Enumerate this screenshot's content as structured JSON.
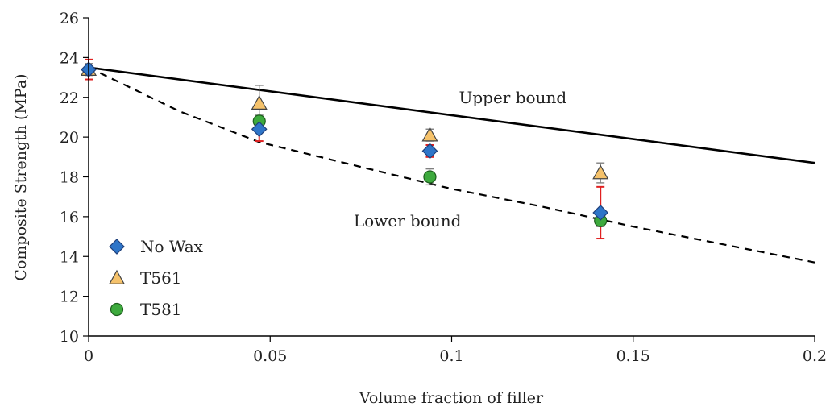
{
  "chart_data": {
    "type": "scatter",
    "xlabel": "Volume fraction of filler",
    "ylabel": "Composite Strength (MPa)",
    "xlim": [
      0,
      0.2
    ],
    "ylim": [
      10,
      26
    ],
    "x_ticks": [
      0,
      0.05,
      0.1,
      0.15,
      0.2
    ],
    "x_tick_labels": [
      "0",
      "0.05",
      "0.1",
      "0.15",
      "0.2"
    ],
    "y_ticks": [
      10,
      12,
      14,
      16,
      18,
      20,
      22,
      24,
      26
    ],
    "y_tick_labels": [
      "10",
      "12",
      "14",
      "16",
      "18",
      "20",
      "22",
      "24",
      "26"
    ],
    "grid": false,
    "legend_position": "bottom-left",
    "series": [
      {
        "name": "No Wax",
        "marker": "diamond",
        "color": "#2e75c8",
        "error_color": "#e02020",
        "points": [
          {
            "x": 0,
            "y": 23.4,
            "err": 0.5
          },
          {
            "x": 0.047,
            "y": 20.4,
            "err": 0.6
          },
          {
            "x": 0.094,
            "y": 19.3,
            "err": 0.3
          },
          {
            "x": 0.141,
            "y": 16.2,
            "err": 1.3
          }
        ]
      },
      {
        "name": "T561",
        "marker": "triangle",
        "color": "#f5c26b",
        "error_color": "#808080",
        "points": [
          {
            "x": 0,
            "y": 23.4,
            "err": 0.3
          },
          {
            "x": 0.047,
            "y": 21.7,
            "err": 0.9
          },
          {
            "x": 0.094,
            "y": 20.1,
            "err": 0.3
          },
          {
            "x": 0.141,
            "y": 18.2,
            "err": 0.5
          }
        ]
      },
      {
        "name": "T581",
        "marker": "circle",
        "color": "#3daa3d",
        "error_color": "#808080",
        "points": [
          {
            "x": 0.047,
            "y": 20.8,
            "err": 0.3
          },
          {
            "x": 0.094,
            "y": 18.0,
            "err": 0.4
          },
          {
            "x": 0.141,
            "y": 15.8,
            "err": 0.3
          }
        ]
      }
    ],
    "bounds": [
      {
        "label": "Upper bound",
        "style": "solid",
        "points": [
          {
            "x": 0,
            "y": 23.5
          },
          {
            "x": 0.2,
            "y": 18.7
          }
        ],
        "label_at": {
          "x": 0.102,
          "y": 22.0
        }
      },
      {
        "label": "Lower bound",
        "style": "dashed",
        "points": [
          {
            "x": 0,
            "y": 23.5
          },
          {
            "x": 0.025,
            "y": 21.3
          },
          {
            "x": 0.047,
            "y": 19.75
          },
          {
            "x": 0.075,
            "y": 18.5
          },
          {
            "x": 0.1,
            "y": 17.4
          },
          {
            "x": 0.125,
            "y": 16.5
          },
          {
            "x": 0.15,
            "y": 15.5
          },
          {
            "x": 0.175,
            "y": 14.6
          },
          {
            "x": 0.2,
            "y": 13.7
          }
        ],
        "label_at": {
          "x": 0.073,
          "y": 15.8
        }
      }
    ]
  }
}
